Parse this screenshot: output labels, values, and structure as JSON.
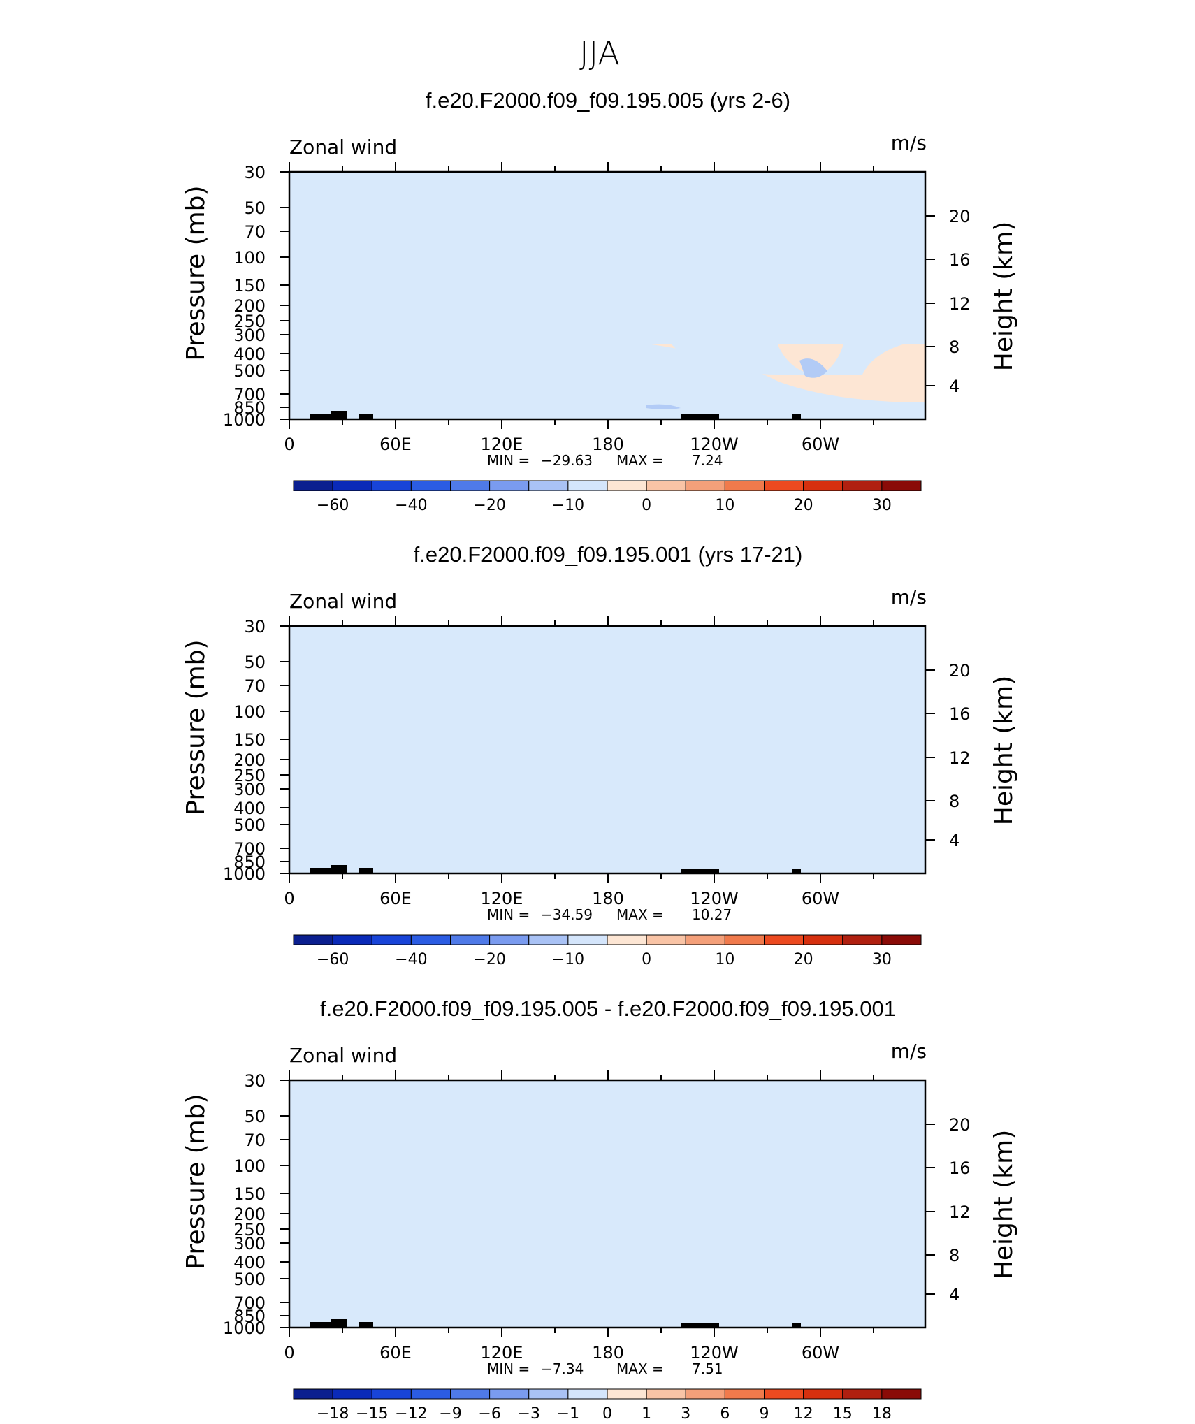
{
  "figure_title": "JJA",
  "common": {
    "variable_label": "Zonal wind",
    "units_label": "m/s",
    "left_axis_title": "Pressure (mb)",
    "right_axis_title": "Height (km)",
    "min_label": "MIN =",
    "max_label": "MAX ="
  },
  "colors": {
    "blue_0": "#d8e9fb",
    "blue_1": "#b2cbf6",
    "blue_2": "#8aaaf2",
    "blue_3": "#5a86ec",
    "blue_4": "#2b5ce3",
    "red_0": "#fde6d4",
    "red_1": "#f9c4a6",
    "red_2": "#f4a07a",
    "red_3": "#f07a4c",
    "topo": "#000000"
  },
  "chart_data": [
    {
      "type": "heatmap",
      "title": "f.e20.F2000.f09_f09.195.005 (yrs 2-6)",
      "x_ticks": [
        "0",
        "60E",
        "120E",
        "180",
        "120W",
        "60W"
      ],
      "y_ticks": [
        "30",
        "50",
        "70",
        "100",
        "150",
        "200",
        "250",
        "300",
        "400",
        "500",
        "700",
        "850",
        "1000"
      ],
      "y_ticks_right": [
        "20",
        "16",
        "12",
        "8",
        "4"
      ],
      "min_value": "−29.63",
      "max_value": "7.24",
      "colorbar_labels": [
        "−60",
        "−40",
        "−20",
        "−10",
        "0",
        "10",
        "20",
        "30"
      ],
      "zmin": -29.63,
      "zmax": 7.24
    },
    {
      "type": "heatmap",
      "title": "f.e20.F2000.f09_f09.195.001 (yrs 17-21)",
      "x_ticks": [
        "0",
        "60E",
        "120E",
        "180",
        "120W",
        "60W"
      ],
      "y_ticks": [
        "30",
        "50",
        "70",
        "100",
        "150",
        "200",
        "250",
        "300",
        "400",
        "500",
        "700",
        "850",
        "1000"
      ],
      "y_ticks_right": [
        "20",
        "16",
        "12",
        "8",
        "4"
      ],
      "min_value": "−34.59",
      "max_value": "10.27",
      "colorbar_labels": [
        "−60",
        "−40",
        "−20",
        "−10",
        "0",
        "10",
        "20",
        "30"
      ],
      "zmin": -34.59,
      "zmax": 10.27
    },
    {
      "type": "heatmap",
      "title": "f.e20.F2000.f09_f09.195.005 - f.e20.F2000.f09_f09.195.001",
      "x_ticks": [
        "0",
        "60E",
        "120E",
        "180",
        "120W",
        "60W"
      ],
      "y_ticks": [
        "30",
        "50",
        "70",
        "100",
        "150",
        "200",
        "250",
        "300",
        "400",
        "500",
        "700",
        "850",
        "1000"
      ],
      "y_ticks_right": [
        "20",
        "16",
        "12",
        "8",
        "4"
      ],
      "min_value": "−7.34",
      "max_value": "7.51",
      "colorbar_labels": [
        "−18",
        "−15",
        "−12",
        "−9",
        "−6",
        "−3",
        "−1",
        "0",
        "1",
        "3",
        "6",
        "9",
        "12",
        "15",
        "18"
      ],
      "zmin": -7.34,
      "zmax": 7.51
    }
  ]
}
